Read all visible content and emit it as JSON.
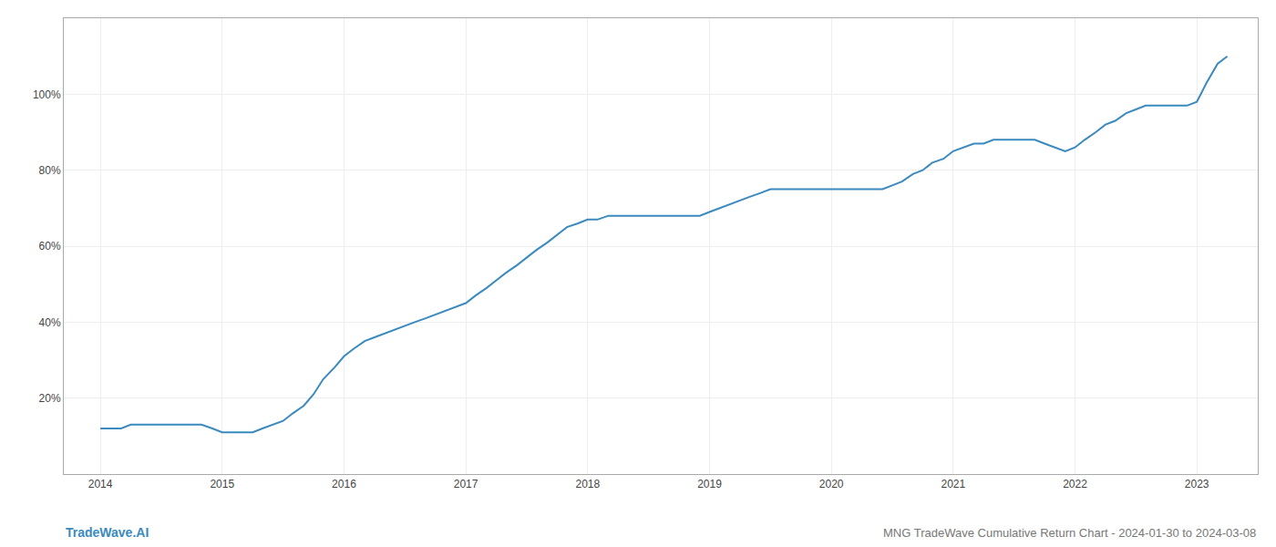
{
  "chart_data": {
    "type": "line",
    "title": "MNG TradeWave Cumulative Return Chart - 2024-01-30 to 2024-03-08",
    "annotations": [
      "TradeWave.AI"
    ],
    "color": "#3a8abf",
    "x": [
      2014.0,
      2014.08,
      2014.17,
      2014.25,
      2014.33,
      2014.42,
      2014.5,
      2014.58,
      2014.67,
      2014.75,
      2014.83,
      2014.92,
      2015.0,
      2015.08,
      2015.17,
      2015.25,
      2015.33,
      2015.42,
      2015.5,
      2015.58,
      2015.67,
      2015.75,
      2015.83,
      2015.92,
      2016.0,
      2016.08,
      2016.17,
      2016.25,
      2016.33,
      2016.42,
      2016.5,
      2016.58,
      2016.67,
      2016.75,
      2016.83,
      2016.92,
      2017.0,
      2017.08,
      2017.17,
      2017.25,
      2017.33,
      2017.42,
      2017.5,
      2017.58,
      2017.67,
      2017.75,
      2017.83,
      2017.92,
      2018.0,
      2018.08,
      2018.17,
      2018.25,
      2018.33,
      2018.42,
      2018.5,
      2018.58,
      2018.67,
      2018.75,
      2018.83,
      2018.92,
      2019.0,
      2019.08,
      2019.17,
      2019.25,
      2019.33,
      2019.42,
      2019.5,
      2019.58,
      2019.67,
      2019.75,
      2019.83,
      2019.92,
      2020.0,
      2020.08,
      2020.17,
      2020.25,
      2020.33,
      2020.42,
      2020.5,
      2020.58,
      2020.67,
      2020.75,
      2020.83,
      2020.92,
      2021.0,
      2021.08,
      2021.17,
      2021.25,
      2021.33,
      2021.42,
      2021.5,
      2021.58,
      2021.67,
      2021.75,
      2021.83,
      2021.92,
      2022.0,
      2022.08,
      2022.17,
      2022.25,
      2022.33,
      2022.42,
      2022.5,
      2022.58,
      2022.67,
      2022.75,
      2022.83,
      2022.92,
      2023.0,
      2023.08,
      2023.17,
      2023.25
    ],
    "values": [
      12,
      12,
      12,
      13,
      13,
      13,
      13,
      13,
      13,
      13,
      13,
      12,
      11,
      11,
      11,
      11,
      12,
      13,
      14,
      16,
      18,
      21,
      25,
      28,
      31,
      33,
      35,
      36,
      37,
      38,
      39,
      40,
      41,
      42,
      43,
      44,
      45,
      47,
      49,
      51,
      53,
      55,
      57,
      59,
      61,
      63,
      65,
      66,
      67,
      67,
      68,
      68,
      68,
      68,
      68,
      68,
      68,
      68,
      68,
      68,
      69,
      70,
      71,
      72,
      73,
      74,
      75,
      75,
      75,
      75,
      75,
      75,
      75,
      75,
      75,
      75,
      75,
      75,
      76,
      77,
      79,
      80,
      82,
      83,
      85,
      86,
      87,
      87,
      88,
      88,
      88,
      88,
      88,
      87,
      86,
      85,
      86,
      88,
      90,
      92,
      93,
      95,
      96,
      97,
      97,
      97,
      97,
      97,
      98,
      103,
      108,
      110
    ],
    "xlim": [
      2013.7,
      2023.5
    ],
    "xticks": [
      2014,
      2015,
      2016,
      2017,
      2018,
      2019,
      2020,
      2021,
      2022,
      2023
    ],
    "ylim": [
      0,
      120
    ],
    "yticks": [
      {
        "value": 20,
        "label": "20%"
      },
      {
        "value": 40,
        "label": "40%"
      },
      {
        "value": 60,
        "label": "60%"
      },
      {
        "value": 80,
        "label": "80%"
      },
      {
        "value": 100,
        "label": "100%"
      }
    ],
    "grid": true
  }
}
